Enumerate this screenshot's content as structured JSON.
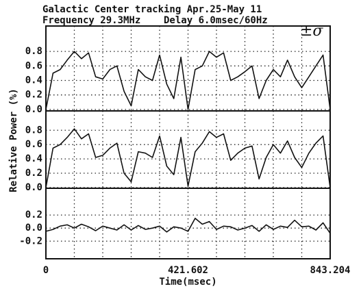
{
  "chart_data": [
    {
      "type": "line",
      "title": "Galactic Center tracking Apr.25-May 11",
      "subtitle": "Frequency 29.3MHz    Delay 6.0msec/60Hz",
      "ylabel": "Relative Power (%)",
      "annotation": "±σ",
      "x": [
        0,
        21.1,
        42.2,
        63.2,
        84.3,
        105.4,
        126.5,
        147.6,
        168.6,
        189.7,
        210.8,
        231.9,
        253.0,
        274.0,
        295.1,
        316.2,
        337.3,
        358.4,
        379.4,
        400.5,
        421.6,
        442.7,
        463.8,
        484.8,
        505.9,
        527.0,
        548.1,
        569.2,
        590.2,
        611.3,
        632.4,
        653.5,
        674.6,
        695.6,
        716.7,
        737.8,
        758.9,
        780.0,
        801.0,
        822.1,
        843.2
      ],
      "values": [
        0.0,
        0.5,
        0.55,
        0.68,
        0.8,
        0.7,
        0.78,
        0.45,
        0.42,
        0.55,
        0.6,
        0.25,
        0.05,
        0.55,
        0.45,
        0.4,
        0.75,
        0.35,
        0.15,
        0.72,
        0.0,
        0.55,
        0.6,
        0.8,
        0.72,
        0.78,
        0.4,
        0.45,
        0.52,
        0.6,
        0.15,
        0.4,
        0.55,
        0.45,
        0.68,
        0.45,
        0.3,
        0.45,
        0.6,
        0.75,
        0.0
      ],
      "xlim": [
        0,
        843.204
      ],
      "ylim": [
        -0.02,
        1.15
      ],
      "yticks": [
        {
          "value": 0,
          "label": "0.0"
        },
        0.2,
        0.4,
        0.6,
        0.8
      ],
      "grid": true,
      "color": "#111111"
    },
    {
      "type": "line",
      "x": [
        0,
        21.1,
        42.2,
        63.2,
        84.3,
        105.4,
        126.5,
        147.6,
        168.6,
        189.7,
        210.8,
        231.9,
        253.0,
        274.0,
        295.1,
        316.2,
        337.3,
        358.4,
        379.4,
        400.5,
        421.6,
        442.7,
        463.8,
        484.8,
        505.9,
        527.0,
        548.1,
        569.2,
        590.2,
        611.3,
        632.4,
        653.5,
        674.6,
        695.6,
        716.7,
        737.8,
        758.9,
        780.0,
        801.0,
        822.1,
        843.2
      ],
      "values": [
        0.0,
        0.55,
        0.6,
        0.7,
        0.82,
        0.68,
        0.75,
        0.42,
        0.45,
        0.55,
        0.62,
        0.2,
        0.08,
        0.5,
        0.48,
        0.42,
        0.72,
        0.3,
        0.18,
        0.7,
        0.02,
        0.5,
        0.62,
        0.78,
        0.7,
        0.75,
        0.38,
        0.48,
        0.55,
        0.58,
        0.12,
        0.42,
        0.6,
        0.48,
        0.65,
        0.42,
        0.28,
        0.48,
        0.62,
        0.72,
        0.0
      ],
      "xlim": [
        0,
        843.204
      ],
      "ylim": [
        -0.01,
        1.07
      ],
      "yticks": [
        {
          "value": 0,
          "label": "0.0"
        },
        0.2,
        0.4,
        0.6,
        0.8
      ],
      "grid": true,
      "color": "#111111"
    },
    {
      "type": "line",
      "xlabel": "Time(msec)",
      "x": [
        0,
        21.1,
        42.2,
        63.2,
        84.3,
        105.4,
        126.5,
        147.6,
        168.6,
        189.7,
        210.8,
        231.9,
        253.0,
        274.0,
        295.1,
        316.2,
        337.3,
        358.4,
        379.4,
        400.5,
        421.6,
        442.7,
        463.8,
        484.8,
        505.9,
        527.0,
        548.1,
        569.2,
        590.2,
        611.3,
        632.4,
        653.5,
        674.6,
        695.6,
        716.7,
        737.8,
        758.9,
        780.0,
        801.0,
        822.1,
        843.2
      ],
      "values": [
        -0.05,
        -0.02,
        0.03,
        0.05,
        0.0,
        0.06,
        0.02,
        -0.04,
        0.03,
        0.0,
        -0.03,
        0.05,
        -0.03,
        0.04,
        -0.02,
        0.0,
        0.03,
        -0.06,
        0.02,
        0.0,
        -0.05,
        0.15,
        0.06,
        0.1,
        -0.02,
        0.03,
        0.02,
        -0.03,
        0.0,
        0.04,
        -0.05,
        0.05,
        -0.02,
        0.03,
        0.01,
        0.12,
        0.02,
        0.03,
        -0.03,
        0.08,
        -0.08
      ],
      "xlim": [
        0,
        843.204
      ],
      "ylim": [
        -0.47,
        0.61
      ],
      "yticks": [
        -0.2,
        {
          "value": 0,
          "label": "0.0"
        },
        0.2
      ],
      "xticks": [
        0,
        421.602,
        843.204
      ],
      "grid": true,
      "color": "#111111"
    }
  ]
}
